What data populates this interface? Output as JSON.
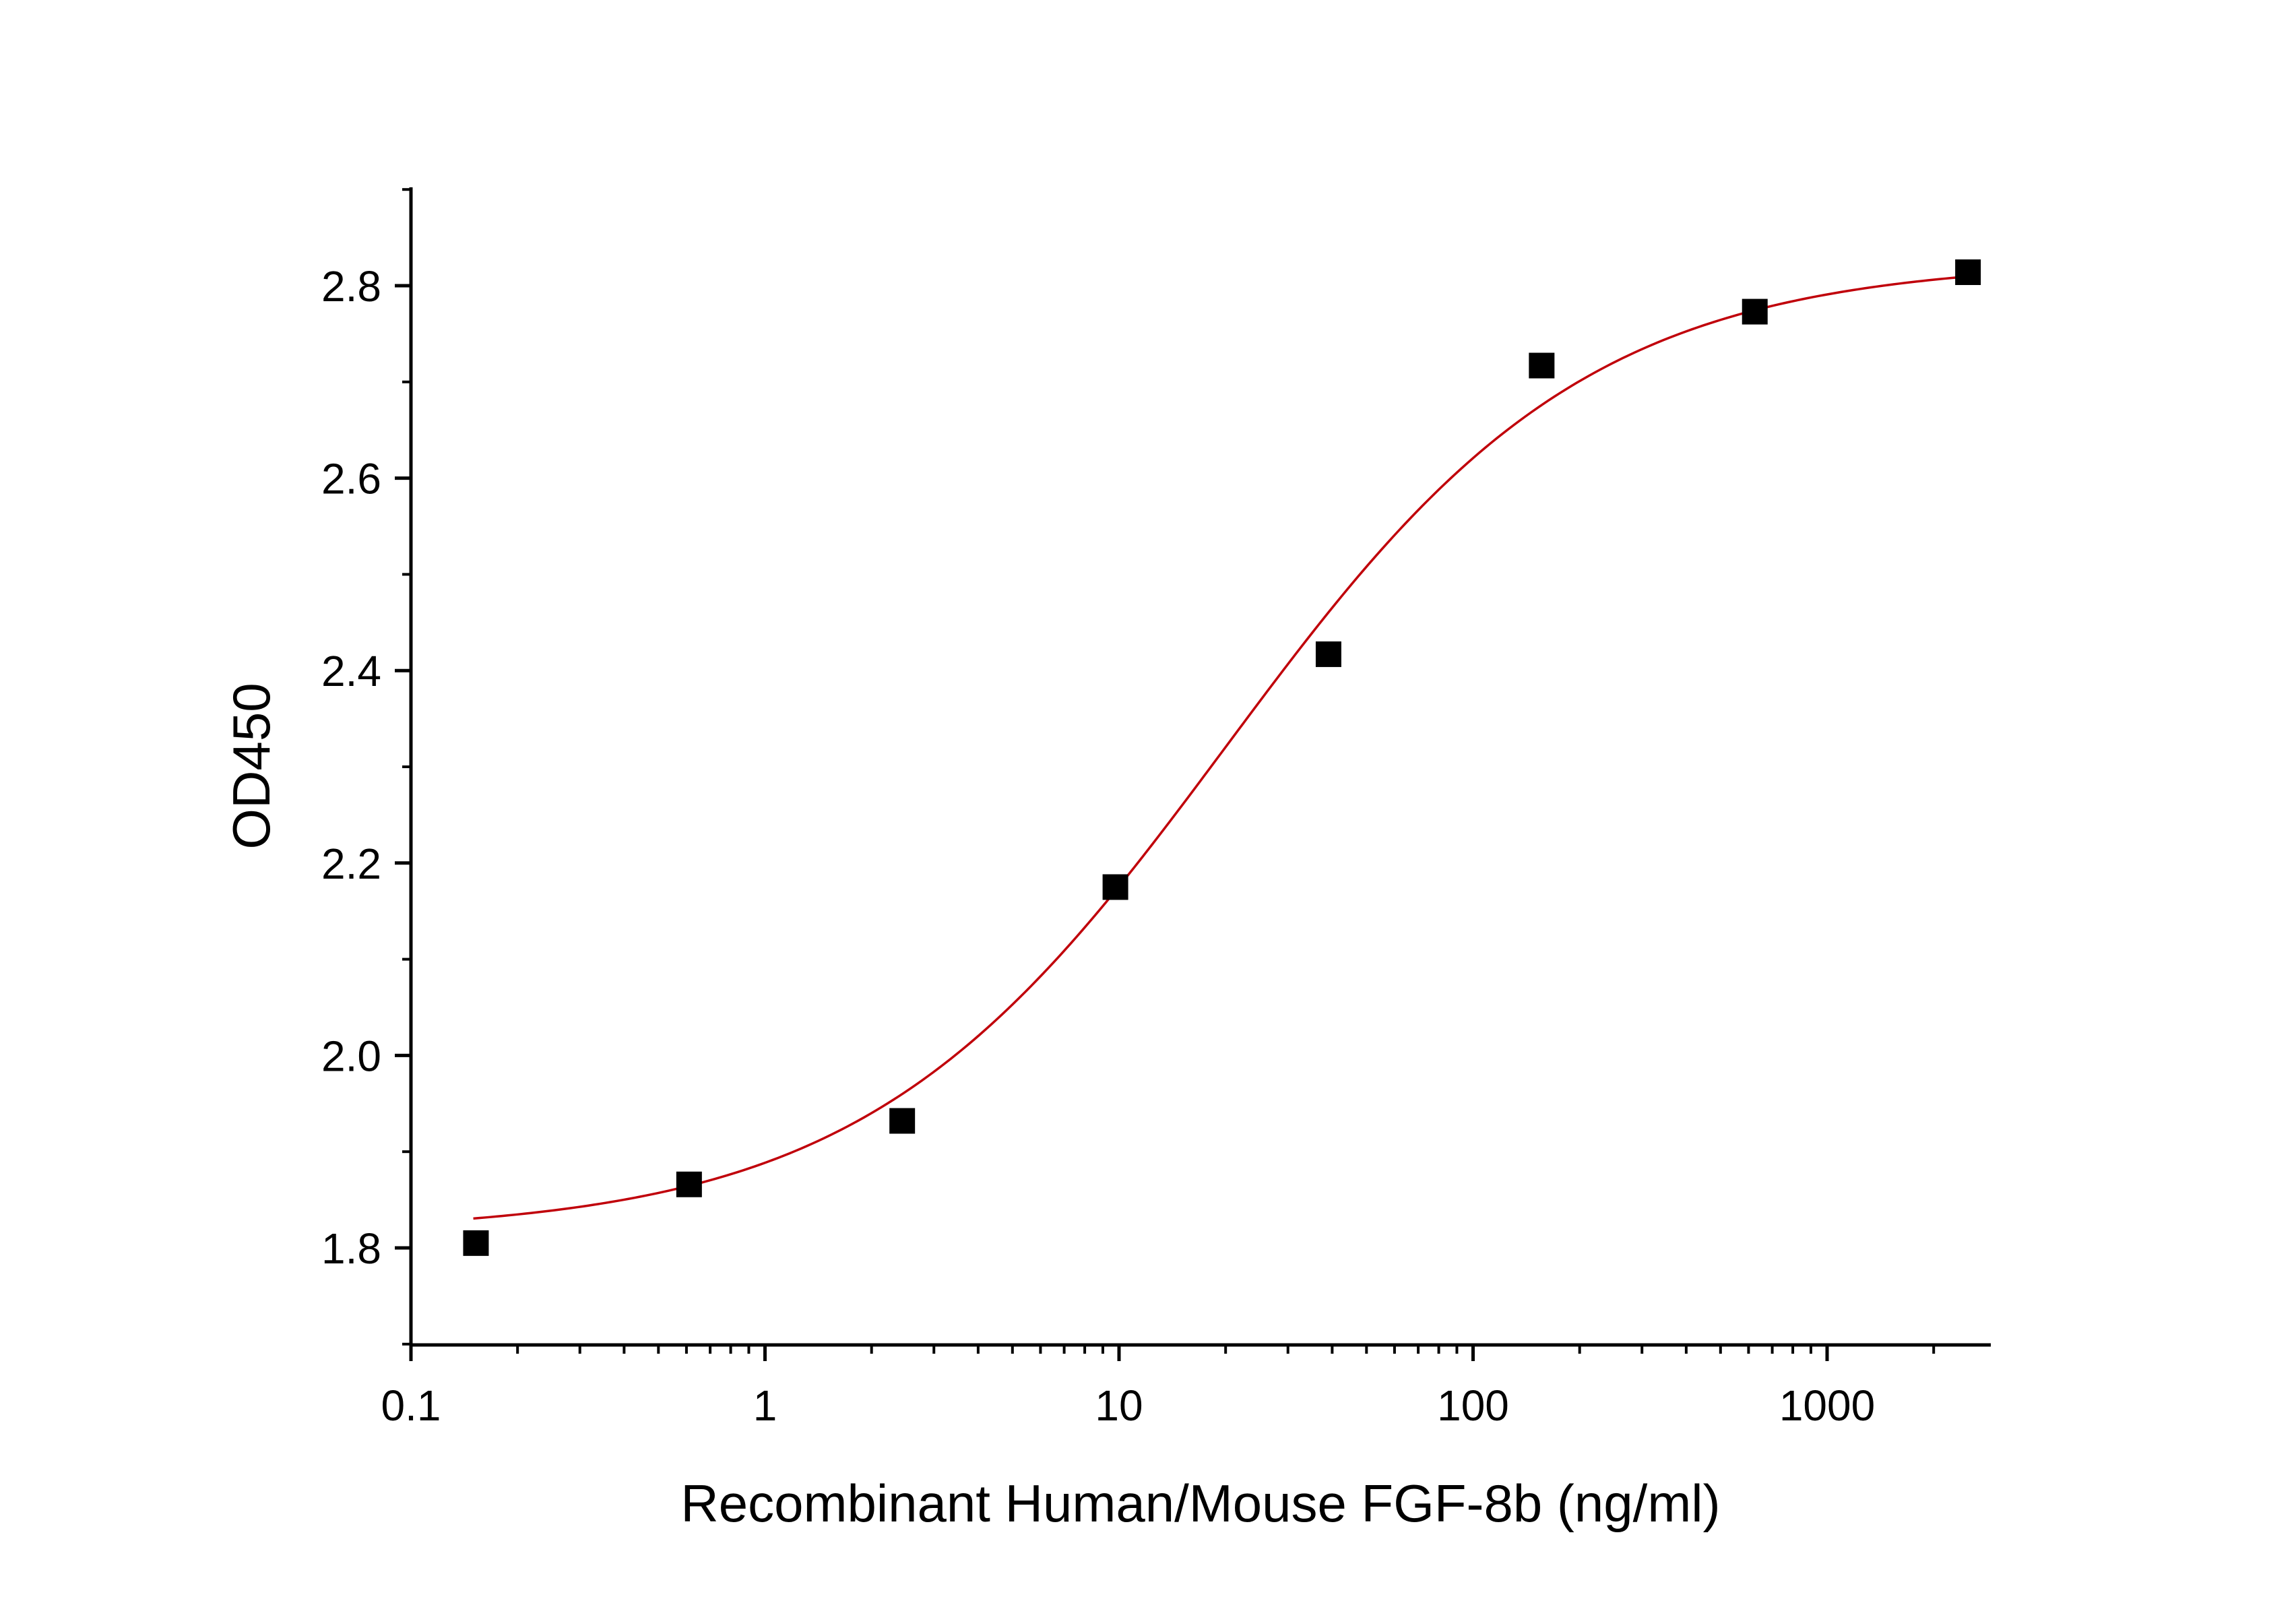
{
  "chart_data": {
    "type": "scatter",
    "title": "",
    "xlabel": "Recombinant Human/Mouse FGF-8b (ng/ml)",
    "ylabel": "OD450",
    "xscale": "log",
    "xlim": [
      0.1,
      2700
    ],
    "ylim": [
      1.7,
      2.9
    ],
    "grid": false,
    "legend": "none",
    "x_ticks": [
      {
        "value": 0.1,
        "label": "0.1"
      },
      {
        "value": 1,
        "label": "1"
      },
      {
        "value": 10,
        "label": "10"
      },
      {
        "value": 100,
        "label": "100"
      },
      {
        "value": 1000,
        "label": "1000"
      }
    ],
    "y_ticks": [
      {
        "value": 1.8,
        "label": "1.8"
      },
      {
        "value": 2.0,
        "label": "2.0"
      },
      {
        "value": 2.2,
        "label": "2.2"
      },
      {
        "value": 2.4,
        "label": "2.4"
      },
      {
        "value": 2.6,
        "label": "2.6"
      },
      {
        "value": 2.8,
        "label": "2.8"
      }
    ],
    "series": [
      {
        "marker": "square",
        "color": "#000000",
        "points": [
          {
            "x": 0.1526,
            "y": 1.805
          },
          {
            "x": 0.6104,
            "y": 1.866
          },
          {
            "x": 2.441,
            "y": 1.932
          },
          {
            "x": 9.766,
            "y": 2.175
          },
          {
            "x": 39.06,
            "y": 2.417
          },
          {
            "x": 156.25,
            "y": 2.717
          },
          {
            "x": 625,
            "y": 2.773
          },
          {
            "x": 2500,
            "y": 2.814
          }
        ]
      }
    ],
    "fit_curve": {
      "model": "4PL",
      "color": "#c0000a",
      "bottom": 1.815,
      "top": 2.826,
      "ec50": 20,
      "hill": 0.85,
      "x_range": [
        0.15,
        2500
      ]
    }
  }
}
